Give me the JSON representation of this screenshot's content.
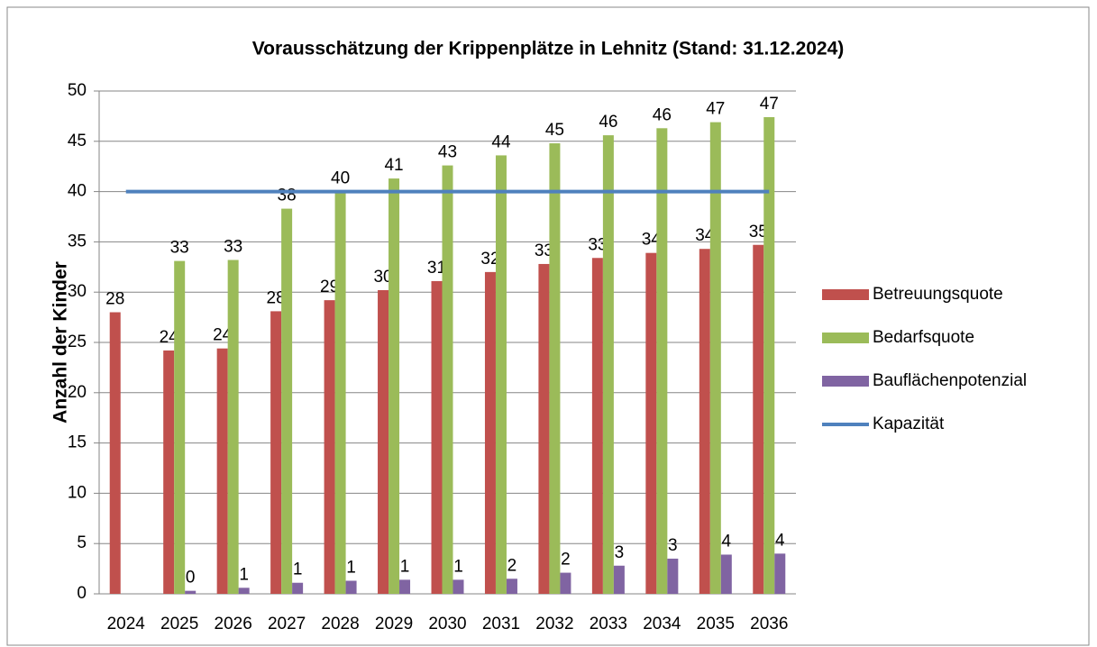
{
  "chart_data": {
    "type": "bar",
    "title": "Vorausschätzung der Krippenplätze in Lehnitz (Stand: 31.12.2024)",
    "y_label": "Anzahl der Kinder",
    "categories": [
      "2024",
      "2025",
      "2026",
      "2027",
      "2028",
      "2029",
      "2030",
      "2031",
      "2032",
      "2033",
      "2034",
      "2035",
      "2036"
    ],
    "series": [
      {
        "name": "Betreuungsquote",
        "color": "#c0504d",
        "values": [
          28,
          24.2,
          24.4,
          28.1,
          29.2,
          30.2,
          31.1,
          32,
          32.8,
          33.4,
          33.9,
          34.3,
          34.7
        ],
        "value_labels": [
          "28",
          "24",
          "24",
          "28",
          "29",
          "30",
          "31",
          "32",
          "33",
          "33",
          "34",
          "34",
          "35"
        ]
      },
      {
        "name": "Bedarfsquote",
        "color": "#9bbb59",
        "values": [
          null,
          33.1,
          33.2,
          38.3,
          40,
          41.3,
          42.6,
          43.6,
          44.8,
          45.6,
          46.3,
          46.9,
          47.4
        ],
        "value_labels": [
          null,
          "33",
          "33",
          "38",
          "40",
          "41",
          "43",
          "44",
          "45",
          "46",
          "46",
          "47",
          "47"
        ]
      },
      {
        "name": "Bauflächenpotenzial",
        "color": "#8064a2",
        "values": [
          null,
          0.3,
          0.6,
          1.1,
          1.3,
          1.4,
          1.4,
          1.5,
          2.1,
          2.8,
          3.5,
          3.9,
          4.0
        ],
        "value_labels": [
          null,
          "0",
          "1",
          "1",
          "1",
          "1",
          "1",
          "2",
          "2",
          "3",
          "3",
          "4",
          "4"
        ]
      },
      {
        "name": "Kapazität",
        "color": "#4f81bd",
        "kind": "line",
        "values": [
          40,
          40,
          40,
          40,
          40,
          40,
          40,
          40,
          40,
          40,
          40,
          40,
          40
        ]
      }
    ],
    "ylim": [
      0,
      50
    ],
    "yticks": [
      0,
      5,
      10,
      15,
      20,
      25,
      30,
      35,
      40,
      45,
      50
    ],
    "grid": true,
    "legend": "right"
  }
}
